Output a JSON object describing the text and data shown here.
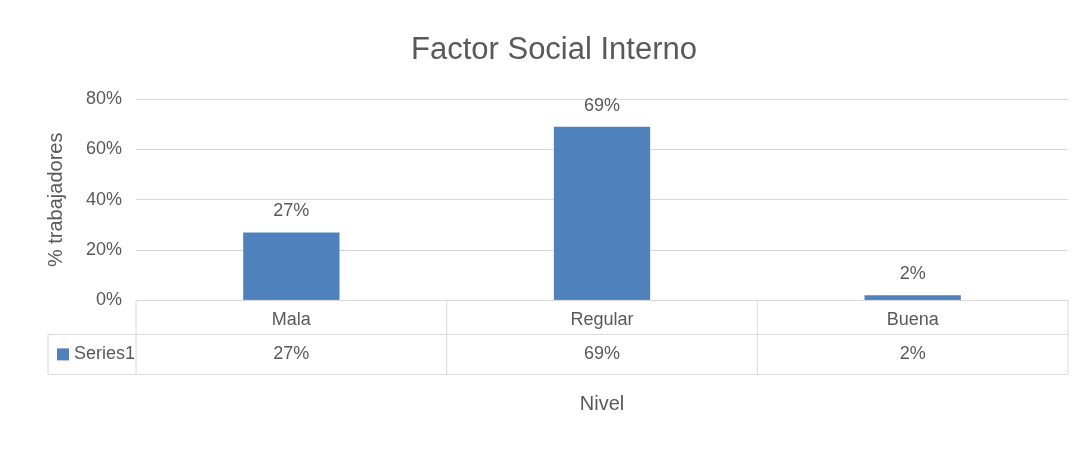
{
  "chart_data": {
    "type": "bar",
    "title": "Factor Social Interno",
    "xlabel": "Nivel",
    "ylabel": "% trabajadores",
    "categories": [
      "Mala",
      "Regular",
      "Buena"
    ],
    "series": [
      {
        "name": "Series1",
        "color": "#4f81bd",
        "values": [
          27,
          69,
          2
        ],
        "value_labels": [
          "27%",
          "69%",
          "2%"
        ]
      }
    ],
    "ylim": [
      0,
      80
    ],
    "yticks": [
      {
        "value": 0,
        "label": "0%"
      },
      {
        "value": 20,
        "label": "20%"
      },
      {
        "value": 40,
        "label": "40%"
      },
      {
        "value": 60,
        "label": "60%"
      },
      {
        "value": 80,
        "label": "80%"
      }
    ],
    "grid": "y"
  }
}
